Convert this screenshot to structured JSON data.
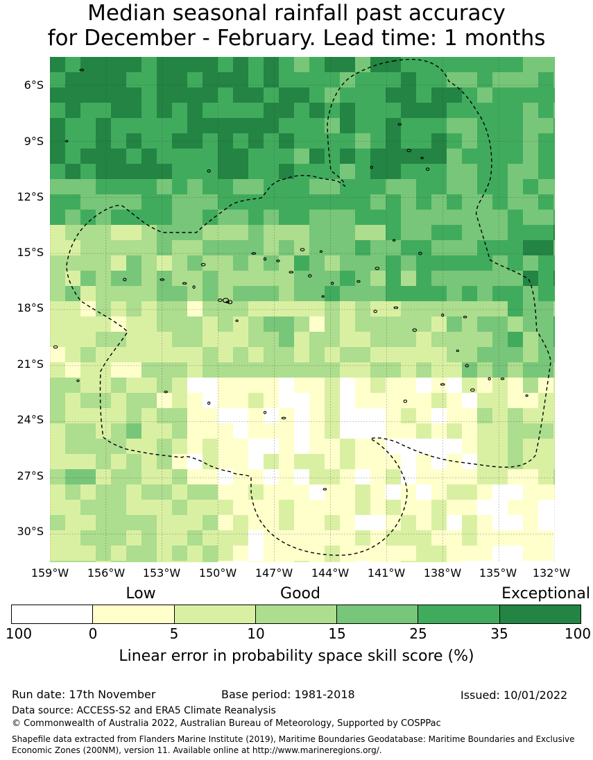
{
  "title": {
    "line1": "Median seasonal rainfall past accuracy",
    "line2": "for December - February. Lead time: 1 months"
  },
  "map": {
    "latitude_labels": [
      "6°S",
      "9°S",
      "12°S",
      "15°S",
      "18°S",
      "21°S",
      "24°S",
      "27°S",
      "30°S"
    ],
    "longitude_labels": [
      "159°W",
      "156°W",
      "153°W",
      "150°W",
      "147°W",
      "144°W",
      "141°W",
      "138°W",
      "135°W",
      "132°W"
    ],
    "lat_extent": [
      -4.5,
      -31.5
    ],
    "lon_extent": [
      -159,
      -132
    ],
    "zone_colors": [
      "#ffffff",
      "#ffffcc",
      "#d9f0a3",
      "#addd8e",
      "#78c679",
      "#41ab5d",
      "#238443"
    ],
    "coastline_color": "#000000",
    "boundary_style": "dashed"
  },
  "legend": {
    "categories": [
      "Low",
      "Good",
      "Exceptional"
    ],
    "tick_labels": [
      "100",
      "0",
      "5",
      "10",
      "15",
      "25",
      "35",
      "100"
    ],
    "colors": [
      "#ffffff",
      "#ffffcc",
      "#d9f0a3",
      "#addd8e",
      "#78c679",
      "#41ab5d",
      "#238443"
    ],
    "label": "Linear error in probability space skill score (%)"
  },
  "footer": {
    "run_date": "Run date: 17th November",
    "base_period": "Base period: 1981-2018",
    "issued": "Issued: 10/01/2022",
    "data_source": "Data source: ACCESS-S2 and ERA5 Climate Reanalysis",
    "copyright": "© Commonwealth of Australia 2022, Australian Bureau of Meteorology, Supported by COSPPac",
    "shapefile": "Shapefile data extracted from Flanders Marine Institute (2019), Maritime Boundaries Geodatabase: Maritime Boundaries and Exclusive Economic Zones (200NM), version 11. Available online at http://www.marineregions.org/."
  }
}
